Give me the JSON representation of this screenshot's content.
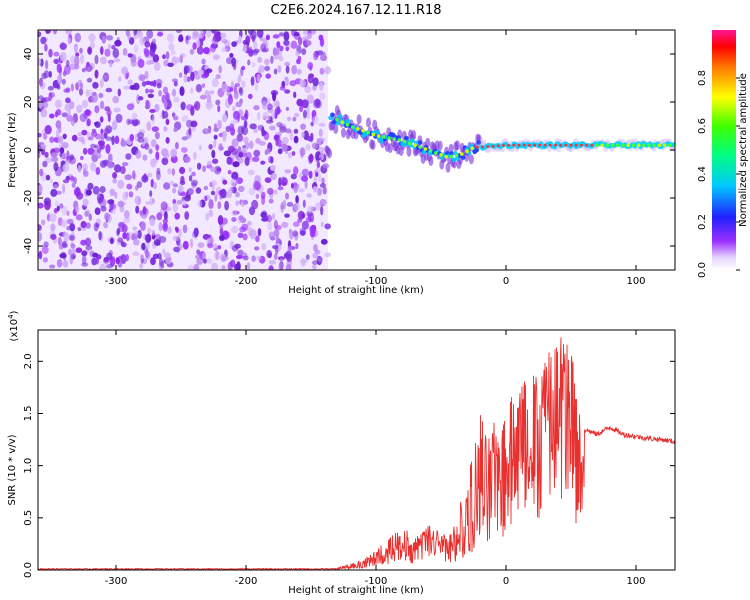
{
  "figure_title": "C2E6.2024.167.12.11.R18",
  "colors": {
    "spectrum_low": "#8a2be2",
    "snr_line": "#e8302f",
    "axis": "#000000"
  },
  "chart_data": [
    {
      "type": "heatmap",
      "name": "spectrogram",
      "xlabel": "Height of straight line (km)",
      "ylabel": "Frequency (Hz)",
      "xlim": [
        -360,
        130
      ],
      "ylim": [
        -50,
        50
      ],
      "x_ticks": [
        -300,
        -200,
        -100,
        0,
        100
      ],
      "y_ticks": [
        -40,
        -20,
        0,
        20,
        40
      ],
      "noise_region_x": [
        -360,
        -137
      ],
      "signal_track": [
        {
          "x": -135,
          "y": 14
        },
        {
          "x": -120,
          "y": 10
        },
        {
          "x": -100,
          "y": 6
        },
        {
          "x": -80,
          "y": 4
        },
        {
          "x": -60,
          "y": 0
        },
        {
          "x": -45,
          "y": -3
        },
        {
          "x": -35,
          "y": -2
        },
        {
          "x": -25,
          "y": 1
        },
        {
          "x": 0,
          "y": 2
        },
        {
          "x": 25,
          "y": 2
        },
        {
          "x": 60,
          "y": 2
        },
        {
          "x": 100,
          "y": 2
        },
        {
          "x": 130,
          "y": 2
        }
      ],
      "colorbar": {
        "label": "Normalized spectral amplitude",
        "range": [
          0,
          1
        ],
        "ticks": [
          "0.0",
          "0.2",
          "0.4",
          "0.6",
          "0.8"
        ]
      }
    },
    {
      "type": "line",
      "name": "snr",
      "xlabel": "Height of straight line (km)",
      "ylabel": "SNR (10 * v/v)",
      "scale_label": "(x10",
      "scale_exp": "4",
      "xlim": [
        -360,
        130
      ],
      "ylim": [
        0,
        2.3
      ],
      "x_ticks": [
        -300,
        -200,
        -100,
        0,
        100
      ],
      "y_ticks": [
        "0.0",
        "0.5",
        "1.0",
        "1.5",
        "2.0"
      ],
      "series": [
        {
          "x": [
            -360,
            -300,
            -200,
            -130,
            -110,
            -95,
            -80,
            -70,
            -60,
            -50,
            -40,
            -30,
            -25,
            -20,
            -15,
            -10,
            -5,
            0,
            5,
            10,
            20,
            30,
            40,
            50,
            55,
            60,
            70,
            80,
            90,
            100,
            110,
            120,
            130
          ],
          "y": [
            0.01,
            0.01,
            0.01,
            0.01,
            0.05,
            0.15,
            0.25,
            0.2,
            0.3,
            0.25,
            0.2,
            0.4,
            0.6,
            0.9,
            0.8,
            1.0,
            0.9,
            1.1,
            1.2,
            1.4,
            1.2,
            1.5,
            1.8,
            1.6,
            1.3,
            1.35,
            1.3,
            1.37,
            1.3,
            1.28,
            1.26,
            1.25,
            1.23
          ],
          "env": [
            0.01,
            0.01,
            0.01,
            0.02,
            0.1,
            0.25,
            0.45,
            0.3,
            0.45,
            0.35,
            0.45,
            0.9,
            1.2,
            1.6,
            1.3,
            1.5,
            1.4,
            1.8,
            1.7,
            1.8,
            1.9,
            2.1,
            2.3,
            2.3,
            1.6,
            1.45,
            1.38,
            1.42,
            1.33,
            1.31,
            1.28,
            1.27,
            1.25
          ]
        }
      ]
    }
  ]
}
